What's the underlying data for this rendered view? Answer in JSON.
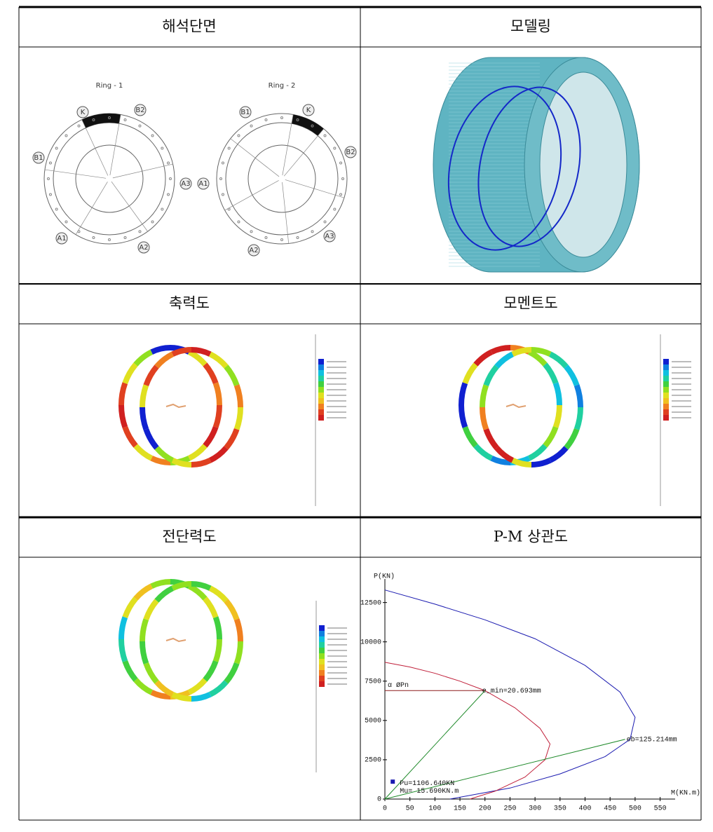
{
  "table": {
    "rows": [
      [
        "해석단면",
        "모델링"
      ],
      [
        "축력도",
        "모멘트도"
      ],
      [
        "전단력도",
        "P-M 상관도"
      ]
    ]
  },
  "section": {
    "ring1": {
      "title": "Ring - 1",
      "labels": [
        "K",
        "B2",
        "B1",
        "A3",
        "A1",
        "A2"
      ]
    },
    "ring2": {
      "title": "Ring - 2",
      "labels": [
        "B1",
        "K",
        "B2",
        "A1",
        "A2",
        "A3"
      ]
    }
  },
  "pm_chart": {
    "type": "line",
    "x_label": "M(KN.m)",
    "y_label": "P(KN)",
    "xlim": [
      0,
      580
    ],
    "ylim": [
      0,
      14000
    ],
    "xticks": [
      0,
      50,
      100,
      150,
      200,
      250,
      300,
      350,
      400,
      450,
      500,
      550
    ],
    "yticks": [
      0,
      2500,
      5000,
      7500,
      10000,
      12500
    ],
    "series": [
      {
        "color": "#1a1ab0",
        "x": [
          0,
          100,
          200,
          300,
          400,
          470,
          500,
          490,
          440,
          350,
          250,
          130
        ],
        "values": [
          13300,
          12400,
          11400,
          10200,
          8500,
          6800,
          5200,
          3800,
          2700,
          1600,
          700,
          0
        ]
      },
      {
        "color": "#c0203a",
        "x": [
          0,
          50,
          100,
          150,
          200,
          260,
          310,
          330,
          320,
          280,
          220,
          170
        ],
        "values": [
          8700,
          8400,
          8000,
          7500,
          6900,
          5800,
          4500,
          3500,
          2500,
          1400,
          500,
          0
        ]
      },
      {
        "color": "#8b1a1a",
        "x": [
          0,
          200
        ],
        "values": [
          6900,
          6900
        ]
      },
      {
        "color": "#1f8a2a",
        "x": [
          0,
          200
        ],
        "values": [
          0,
          6900
        ]
      },
      {
        "color": "#1f8a2a",
        "x": [
          0,
          480
        ],
        "values": [
          0,
          3800
        ]
      }
    ],
    "point": {
      "x": 15.69,
      "y": 1106.64,
      "color": "#1a1ab0"
    },
    "annotations": [
      {
        "text": "α ØPn",
        "x": 0,
        "y": 6900
      },
      {
        "text": "e_min=20.693mm",
        "x": 200,
        "y": 6900
      },
      {
        "text": "eb=125.214mm",
        "x": 480,
        "y": 3800
      },
      {
        "text": "Pu=1106.640KN",
        "x": 15.69,
        "y": 1106.64
      },
      {
        "text": "Mu=  15.690KN.m",
        "x": 15.69,
        "y": 1106.64
      }
    ]
  }
}
